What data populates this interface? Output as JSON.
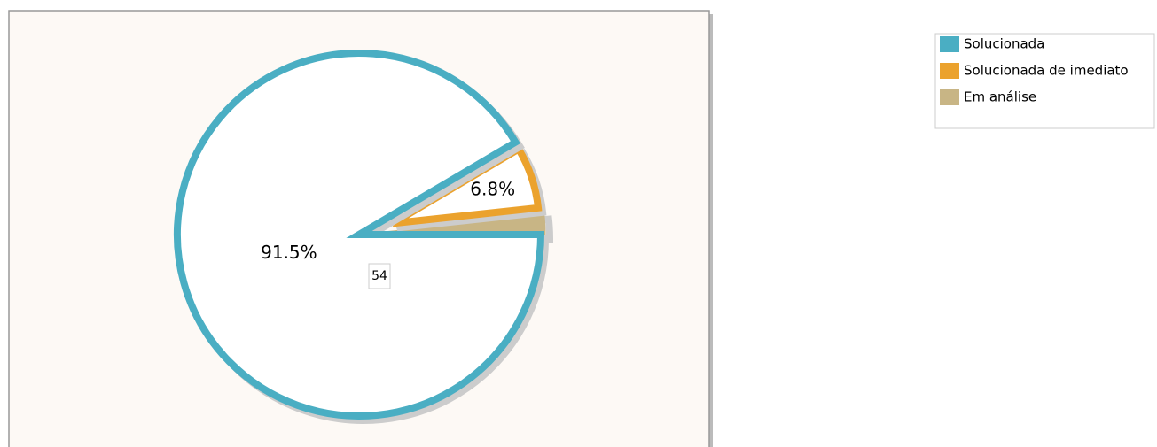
{
  "chart_data": {
    "type": "pie",
    "categories": [
      "Solucionada",
      "Solucionada de imediato",
      "Em análise"
    ],
    "values": [
      91.5,
      6.8,
      1.7
    ],
    "value_labels": [
      "91.5%",
      "6.8%",
      null
    ],
    "colors": [
      "#4aaec3",
      "#eba22d",
      "#c8b585"
    ],
    "annotation": "54",
    "legend": "top-right"
  }
}
